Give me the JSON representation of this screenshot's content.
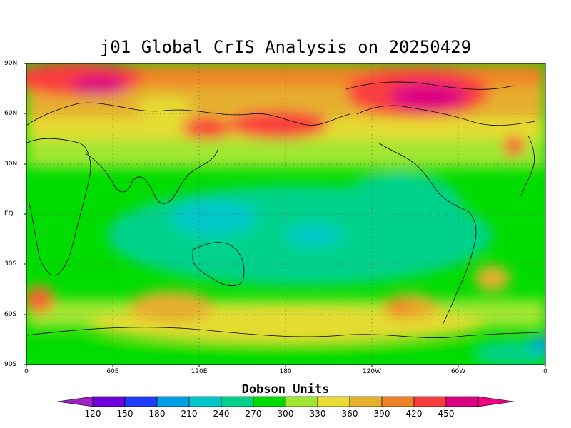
{
  "title": "j01 Global CrIS Analysis on 20250429",
  "lat_labels": [
    "90N",
    "60N",
    "30N",
    "EQ",
    "30S",
    "60S",
    "90S"
  ],
  "lon_labels": [
    "0",
    "60E",
    "120E",
    "180",
    "120W",
    "60W",
    "0"
  ],
  "units": "Dobson Units",
  "colorbar": {
    "ticks": [
      "120",
      "150",
      "180",
      "210",
      "240",
      "270",
      "300",
      "330",
      "360",
      "390",
      "420",
      "450"
    ],
    "colors": [
      "#a020c8",
      "#6e00dc",
      "#1e3cff",
      "#00a0e6",
      "#00c8c8",
      "#00d28c",
      "#00dc00",
      "#a0e632",
      "#e6dc32",
      "#e6af2d",
      "#f08228",
      "#fa3c3c",
      "#dc0082",
      "#f00082"
    ]
  }
}
